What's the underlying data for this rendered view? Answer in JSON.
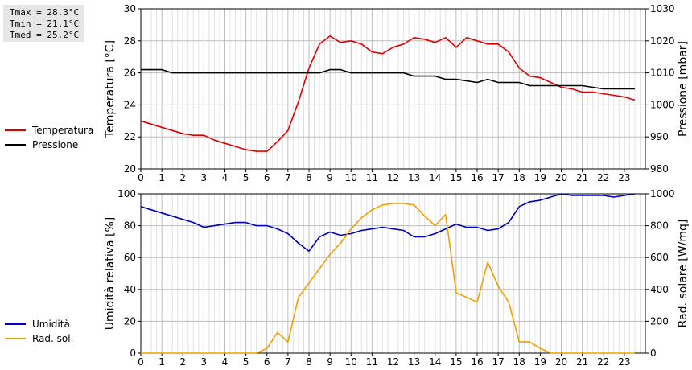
{
  "stats": {
    "tmax": "Tmax = 28.3°C",
    "tmin": "Tmin = 21.1°C",
    "tmed": "Tmed = 25.2°C"
  },
  "legend_top": [
    {
      "label": "Temperatura",
      "color": "#e00000"
    },
    {
      "label": "Pressione",
      "color": "#000000"
    }
  ],
  "legend_bottom": [
    {
      "label": "Umidità",
      "color": "#0000c0"
    },
    {
      "label": "Rad. sol.",
      "color": "#f0a000"
    }
  ],
  "chart_data": [
    {
      "type": "line",
      "ylabel": "Temperatura [°C]",
      "y2label": "Pressione [mbar]",
      "xlim": [
        0,
        24
      ],
      "ylim": [
        20,
        30
      ],
      "y2lim": [
        980,
        1030
      ],
      "xticks": [
        "0",
        "1",
        "2",
        "3",
        "4",
        "5",
        "6",
        "7",
        "8",
        "9",
        "10",
        "11",
        "12",
        "13",
        "14",
        "15",
        "16",
        "17",
        "18",
        "19",
        "20",
        "21",
        "22",
        "23"
      ],
      "yticks": [
        "20",
        "22",
        "24",
        "26",
        "28",
        "30"
      ],
      "y2ticks": [
        "980",
        "990",
        "1000",
        "1010",
        "1020",
        "1030"
      ],
      "grid": true,
      "series": [
        {
          "name": "Temperatura",
          "axis": "left",
          "color": "#e00000",
          "x": [
            0,
            1,
            2,
            2.5,
            3,
            3.5,
            4,
            4.5,
            5,
            5.5,
            6,
            6.5,
            7,
            7.5,
            8,
            8.5,
            9,
            9.5,
            10,
            10.5,
            11,
            11.5,
            12,
            12.5,
            13,
            13.5,
            14,
            14.5,
            15,
            15.5,
            16,
            16.5,
            17,
            17.5,
            18,
            18.5,
            19,
            19.5,
            20,
            20.5,
            21,
            21.5,
            22,
            22.5,
            23,
            23.5
          ],
          "values": [
            23.0,
            22.6,
            22.2,
            22.1,
            22.1,
            21.8,
            21.6,
            21.4,
            21.2,
            21.1,
            21.1,
            21.7,
            22.4,
            24.2,
            26.3,
            27.8,
            28.3,
            27.9,
            28.0,
            27.8,
            27.3,
            27.2,
            27.6,
            27.8,
            28.2,
            28.1,
            27.9,
            28.2,
            27.6,
            28.2,
            28.0,
            27.8,
            27.8,
            27.3,
            26.3,
            25.8,
            25.7,
            25.4,
            25.1,
            25.0,
            24.8,
            24.8,
            24.7,
            24.6,
            24.5,
            24.3
          ]
        },
        {
          "name": "Pressione",
          "axis": "right",
          "color": "#000000",
          "x": [
            0,
            1,
            1.5,
            2,
            3,
            4,
            5,
            6,
            7,
            8,
            8.5,
            9,
            9.5,
            10,
            11,
            12,
            12.5,
            13,
            14,
            14.5,
            15,
            16,
            16.5,
            17,
            18,
            18.5,
            19,
            20,
            21,
            22,
            23,
            23.5
          ],
          "values": [
            1011,
            1011,
            1010,
            1010,
            1010,
            1010,
            1010,
            1010,
            1010,
            1010,
            1010,
            1011,
            1011,
            1010,
            1010,
            1010,
            1010,
            1009,
            1009,
            1008,
            1008,
            1007,
            1008,
            1007,
            1007,
            1006,
            1006,
            1006,
            1006,
            1005,
            1005,
            1005
          ]
        }
      ]
    },
    {
      "type": "line",
      "ylabel": "Umidità relativa [%]",
      "y2label": "Rad. solare [W/mq]",
      "xlim": [
        0,
        24
      ],
      "ylim": [
        0,
        100
      ],
      "y2lim": [
        0,
        1000
      ],
      "xticks": [
        "0",
        "1",
        "2",
        "3",
        "4",
        "5",
        "6",
        "7",
        "8",
        "9",
        "10",
        "11",
        "12",
        "13",
        "14",
        "15",
        "16",
        "17",
        "18",
        "19",
        "20",
        "21",
        "22",
        "23"
      ],
      "yticks": [
        "0",
        "20",
        "40",
        "60",
        "80",
        "100"
      ],
      "y2ticks": [
        "0",
        "200",
        "400",
        "600",
        "800",
        "1000"
      ],
      "grid": true,
      "series": [
        {
          "name": "Umidità",
          "axis": "left",
          "color": "#0000c0",
          "x": [
            0,
            1,
            2,
            2.5,
            3,
            3.5,
            4,
            4.5,
            5,
            5.5,
            6,
            6.5,
            7,
            7.5,
            8,
            8.5,
            9,
            9.5,
            10,
            10.5,
            11,
            11.5,
            12,
            12.5,
            13,
            13.5,
            14,
            14.5,
            15,
            15.5,
            16,
            16.5,
            17,
            17.5,
            18,
            18.5,
            19,
            19.5,
            20,
            20.5,
            21,
            21.5,
            22,
            22.5,
            23,
            23.5
          ],
          "values": [
            92,
            88,
            84,
            82,
            79,
            80,
            81,
            82,
            82,
            80,
            80,
            78,
            75,
            69,
            64,
            73,
            76,
            74,
            75,
            77,
            78,
            79,
            78,
            77,
            73,
            73,
            75,
            78,
            81,
            79,
            79,
            77,
            78,
            82,
            92,
            95,
            96,
            98,
            100,
            99,
            99,
            99,
            99,
            98,
            99,
            100
          ]
        },
        {
          "name": "Rad. sol.",
          "axis": "right",
          "color": "#f0a000",
          "x": [
            0,
            1,
            2,
            3,
            4,
            5,
            5.5,
            6,
            6.5,
            7,
            7.5,
            8,
            8.5,
            9,
            9.5,
            10,
            10.5,
            11,
            11.5,
            12,
            12.5,
            13,
            13.5,
            14,
            14.5,
            15,
            15.5,
            16,
            16.5,
            17,
            17.5,
            18,
            18.5,
            19,
            19.5,
            20,
            21,
            22,
            23,
            23.5
          ],
          "values": [
            0,
            0,
            0,
            0,
            0,
            0,
            0,
            30,
            130,
            70,
            350,
            440,
            530,
            620,
            690,
            780,
            850,
            900,
            930,
            940,
            940,
            930,
            860,
            800,
            870,
            380,
            350,
            320,
            570,
            420,
            320,
            70,
            70,
            30,
            0,
            0,
            0,
            0,
            0,
            0
          ]
        }
      ]
    }
  ]
}
